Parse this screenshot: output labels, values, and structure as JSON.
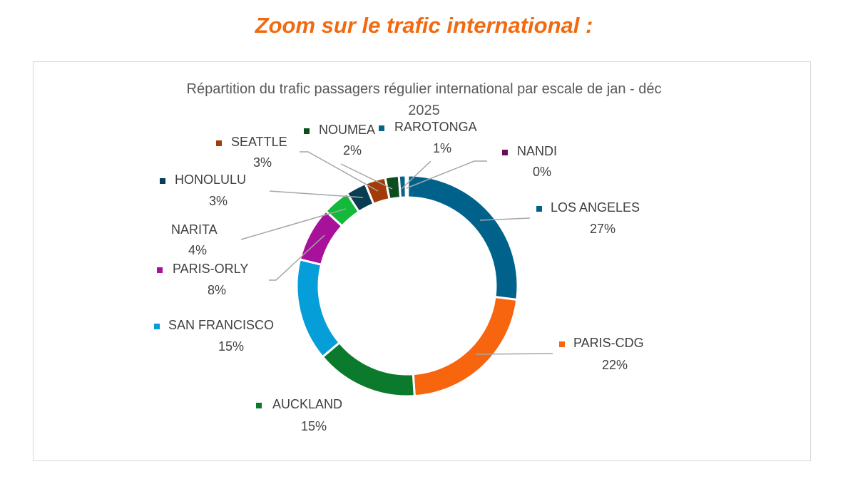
{
  "heading": "Zoom sur le trafic international :",
  "chart_data": {
    "type": "pie",
    "variant": "donut",
    "title_line1": "Répartition du trafic passagers régulier international par escale de jan -  déc",
    "title_line2": "2025",
    "categories": [
      "LOS ANGELES",
      "PARIS-CDG",
      "AUCKLAND",
      "SAN FRANCISCO",
      "PARIS-ORLY",
      "NARITA",
      "HONOLULU",
      "SEATTLE",
      "NOUMEA",
      "RAROTONGA",
      "NANDI"
    ],
    "values": [
      27,
      22,
      15,
      15,
      8,
      4,
      3,
      3,
      2,
      1,
      0.3
    ],
    "labels": [
      "27%",
      "22%",
      "15%",
      "15%",
      "8%",
      "4%",
      "3%",
      "3%",
      "2%",
      "1%",
      "0%"
    ],
    "colors": [
      "#00628a",
      "#f7650f",
      "#0b7a2c",
      "#069ed8",
      "#a8119a",
      "#14b83a",
      "#083d52",
      "#a33b08",
      "#0b4d1f",
      "#08628a",
      "#6b0b5c"
    ],
    "legend": "none (data labels with leader lines)"
  }
}
